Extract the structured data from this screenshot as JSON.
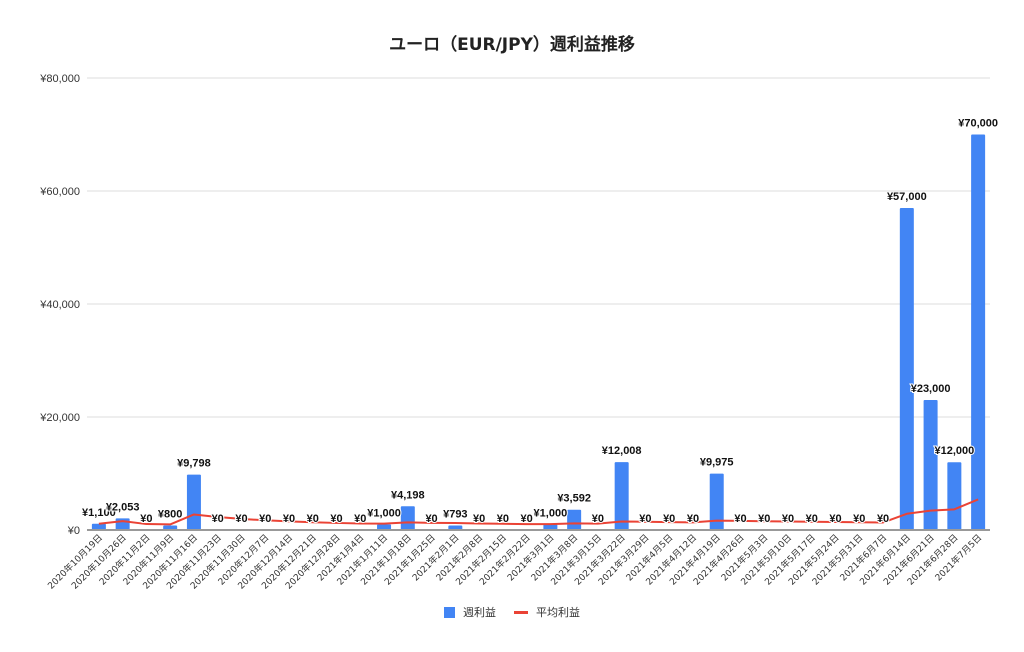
{
  "chart_data": {
    "type": "bar",
    "title": "ユーロ（EUR/JPY）週利益推移",
    "xlabel": "",
    "ylabel": "",
    "ylim": [
      0,
      80000
    ],
    "yticks": [
      "¥0",
      "¥20,000",
      "¥40,000",
      "¥60,000",
      "¥80,000"
    ],
    "grid": true,
    "legend_position": "bottom",
    "categories": [
      "2020年10月19日",
      "2020年10月26日",
      "2020年11月2日",
      "2020年11月9日",
      "2020年11月16日",
      "2020年11月23日",
      "2020年11月30日",
      "2020年12月7日",
      "2020年12月14日",
      "2020年12月21日",
      "2020年12月28日",
      "2021年1月4日",
      "2021年1月11日",
      "2021年1月18日",
      "2021年1月25日",
      "2021年2月1日",
      "2021年2月8日",
      "2021年2月15日",
      "2021年2月22日",
      "2021年3月1日",
      "2021年3月8日",
      "2021年3月15日",
      "2021年3月22日",
      "2021年3月29日",
      "2021年4月5日",
      "2021年4月12日",
      "2021年4月19日",
      "2021年4月26日",
      "2021年5月3日",
      "2021年5月10日",
      "2021年5月17日",
      "2021年5月24日",
      "2021年5月31日",
      "2021年6月7日",
      "2021年6月14日",
      "2021年6月21日",
      "2021年6月28日",
      "2021年7月5日"
    ],
    "series": [
      {
        "name": "週利益",
        "type": "bar",
        "color": "#4285f4",
        "values": [
          1100,
          2053,
          0,
          800,
          9798,
          0,
          0,
          0,
          0,
          0,
          0,
          0,
          1000,
          4198,
          0,
          793,
          0,
          0,
          0,
          1000,
          3592,
          0,
          12008,
          0,
          0,
          0,
          9975,
          0,
          0,
          0,
          0,
          0,
          0,
          0,
          57000,
          23000,
          12000,
          70000
        ],
        "labels": [
          "¥1,100",
          "¥2,053",
          "¥0",
          "¥800",
          "¥9,798",
          "¥0",
          "¥0",
          "¥0",
          "¥0",
          "¥0",
          "¥0",
          "¥0",
          "¥1,000",
          "¥4,198",
          "¥0",
          "¥793",
          "¥0",
          "¥0",
          "¥0",
          "¥1,000",
          "¥3,592",
          "¥0",
          "¥12,008",
          "¥0",
          "¥0",
          "¥0",
          "¥9,975",
          "¥0",
          "¥0",
          "¥0",
          "¥0",
          "¥0",
          "¥0",
          "¥0",
          "¥57,000",
          "¥23,000",
          "¥12,000",
          "¥70,000"
        ]
      },
      {
        "name": "平均利益",
        "type": "line",
        "color": "#ea4335",
        "values": [
          1100,
          1577,
          1051,
          988,
          2750,
          2292,
          1964,
          1719,
          1528,
          1375,
          1250,
          1146,
          1135,
          1354,
          1264,
          1234,
          1161,
          1096,
          1036,
          1036,
          1174,
          1133,
          1510,
          1450,
          1394,
          1343,
          1665,
          1608,
          1554,
          1505,
          1460,
          1417,
          1377,
          1336,
          2875,
          3434,
          3661,
          5405
        ]
      }
    ]
  },
  "legend": {
    "items": [
      {
        "label": "週利益",
        "color": "#4285f4"
      },
      {
        "label": "平均利益",
        "color": "#ea4335"
      }
    ]
  }
}
